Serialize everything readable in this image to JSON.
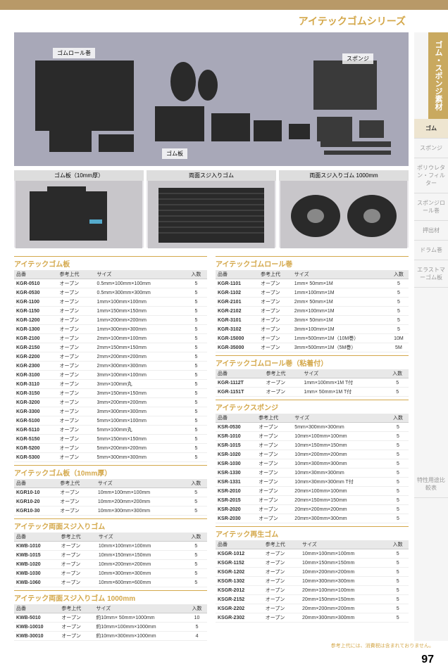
{
  "page": {
    "title": "アイテックゴムシリーズ",
    "number": "97",
    "footer": "参考上代には、消費税は含まれておりません。"
  },
  "sidebar": {
    "category": "ゴム・スポンジ素材",
    "items": [
      "ゴム",
      "スポンジ",
      "ポリウレタン・フィルター",
      "スポンジロール巻",
      "押出材",
      "ドラム巻",
      "エラストマーゴム板",
      "特性用途比較表"
    ]
  },
  "images": {
    "main_labels": [
      "ゴムロール巻",
      "ゴム板",
      "スポンジ"
    ],
    "row_labels": [
      "ゴム板（10mm厚）",
      "両面スジ入りゴム",
      "両面スジ入りゴム 1000mm"
    ]
  },
  "headers": {
    "code": "品番",
    "ref": "参考上代",
    "size": "サイズ",
    "qty": "入数"
  },
  "tables": {
    "t1": {
      "title": "アイテックゴム板",
      "rows": [
        [
          "KGR-0510",
          "オープン",
          "0.5mm×100mm×100mm",
          "5"
        ],
        [
          "KGR-0530",
          "オープン",
          "0.5mm×300mm×300mm",
          "5"
        ],
        [
          "KGR-1100",
          "オープン",
          "1mm×100mm×100mm",
          "5"
        ],
        [
          "KGR-1150",
          "オープン",
          "1mm×150mm×150mm",
          "5"
        ],
        [
          "KGR-1200",
          "オープン",
          "1mm×200mm×200mm",
          "5"
        ],
        [
          "KGR-1300",
          "オープン",
          "1mm×300mm×300mm",
          "5"
        ],
        [
          "KGR-2100",
          "オープン",
          "2mm×100mm×100mm",
          "5"
        ],
        [
          "KGR-2150",
          "オープン",
          "2mm×150mm×150mm",
          "5"
        ],
        [
          "KGR-2200",
          "オープン",
          "2mm×200mm×200mm",
          "5"
        ],
        [
          "KGR-2300",
          "オープン",
          "2mm×300mm×300mm",
          "5"
        ],
        [
          "KGR-3100",
          "オープン",
          "3mm×100mm×100mm",
          "5"
        ],
        [
          "KGR-3110",
          "オープン",
          "3mm×100mm丸",
          "5"
        ],
        [
          "KGR-3150",
          "オープン",
          "3mm×150mm×150mm",
          "5"
        ],
        [
          "KGR-3200",
          "オープン",
          "3mm×200mm×200mm",
          "5"
        ],
        [
          "KGR-3300",
          "オープン",
          "3mm×300mm×300mm",
          "5"
        ],
        [
          "KGR-5100",
          "オープン",
          "5mm×100mm×100mm",
          "5"
        ],
        [
          "KGR-5110",
          "オープン",
          "5mm×100mm丸",
          "5"
        ],
        [
          "KGR-5150",
          "オープン",
          "5mm×150mm×150mm",
          "5"
        ],
        [
          "KGR-5200",
          "オープン",
          "5mm×200mm×200mm",
          "5"
        ],
        [
          "KGR-5300",
          "オープン",
          "5mm×300mm×300mm",
          "5"
        ]
      ]
    },
    "t2": {
      "title": "アイテックゴム板（10mm厚）",
      "rows": [
        [
          "KGR10-10",
          "オープン",
          "10mm×100mm×100mm",
          "5"
        ],
        [
          "KGR10-20",
          "オープン",
          "10mm×200mm×200mm",
          "5"
        ],
        [
          "KGR10-30",
          "オープン",
          "10mm×300mm×300mm",
          "5"
        ]
      ]
    },
    "t3": {
      "title": "アイテック両面スジ入りゴム",
      "rows": [
        [
          "KWB-1010",
          "オープン",
          "10mm×100mm×100mm",
          "5"
        ],
        [
          "KWB-1015",
          "オープン",
          "10mm×150mm×150mm",
          "5"
        ],
        [
          "KWB-1020",
          "オープン",
          "10mm×200mm×200mm",
          "5"
        ],
        [
          "KWB-1030",
          "オープン",
          "10mm×300mm×300mm",
          "5"
        ],
        [
          "KWB-1060",
          "オープン",
          "10mm×600mm×600mm",
          "5"
        ]
      ]
    },
    "t4": {
      "title": "アイテック両面スジ入りゴム 1000mm",
      "rows": [
        [
          "KWB-5010",
          "オープン",
          "約10mm× 50mm×1000mm",
          "10"
        ],
        [
          "KWB-10010",
          "オープン",
          "約10mm×100mm×1000mm",
          "5"
        ],
        [
          "KWB-30010",
          "オープン",
          "約10mm×300mm×1000mm",
          "4"
        ]
      ]
    },
    "t5": {
      "title": "アイテックゴムロール巻",
      "rows": [
        [
          "KGR-1101",
          "オープン",
          "1mm× 50mm×1M",
          "5"
        ],
        [
          "KGR-1102",
          "オープン",
          "1mm×100mm×1M",
          "5"
        ],
        [
          "KGR-2101",
          "オープン",
          "2mm× 50mm×1M",
          "5"
        ],
        [
          "KGR-2102",
          "オープン",
          "2mm×100mm×1M",
          "5"
        ],
        [
          "KGR-3101",
          "オープン",
          "3mm× 50mm×1M",
          "5"
        ],
        [
          "KGR-3102",
          "オープン",
          "3mm×100mm×1M",
          "5"
        ],
        [
          "KGR-15000",
          "オープン",
          "1mm×500mm×1M（10M巻）",
          "10M"
        ],
        [
          "KGR-35000",
          "オープン",
          "3mm×500mm×1M（5M巻）",
          "5M"
        ]
      ]
    },
    "t6": {
      "title": "アイテックゴムロール巻（粘着付）",
      "rows": [
        [
          "KGR-1112T",
          "オープン",
          "1mm×100mm×1M T付",
          "5"
        ],
        [
          "KGR-1151T",
          "オープン",
          "1mm× 50mm×1M T付",
          "5"
        ]
      ]
    },
    "t7": {
      "title": "アイテックスポンジ",
      "rows": [
        [
          "KSR-0530",
          "オープン",
          "5mm×300mm×300mm",
          "5"
        ],
        [
          "KSR-1010",
          "オープン",
          "10mm×100mm×100mm",
          "5"
        ],
        [
          "KSR-1015",
          "オープン",
          "10mm×150mm×150mm",
          "5"
        ],
        [
          "KSR-1020",
          "オープン",
          "10mm×200mm×200mm",
          "5"
        ],
        [
          "KSR-1030",
          "オープン",
          "10mm×300mm×300mm",
          "5"
        ],
        [
          "KSR-1330",
          "オープン",
          "10mm×30mm×300mm",
          "5"
        ],
        [
          "KSR-1331",
          "オープン",
          "10mm×30mm×300mm T付",
          "5"
        ],
        [
          "KSR-2010",
          "オープン",
          "20mm×100mm×100mm",
          "5"
        ],
        [
          "KSR-2015",
          "オープン",
          "20mm×150mm×150mm",
          "5"
        ],
        [
          "KSR-2020",
          "オープン",
          "20mm×200mm×200mm",
          "5"
        ],
        [
          "KSR-2030",
          "オープン",
          "20mm×300mm×300mm",
          "5"
        ]
      ]
    },
    "t8": {
      "title": "アイテック再生ゴム",
      "rows": [
        [
          "KSGR-1012",
          "オープン",
          "10mm×100mm×100mm",
          "5"
        ],
        [
          "KSGR-1152",
          "オープン",
          "10mm×150mm×150mm",
          "5"
        ],
        [
          "KSGR-1202",
          "オープン",
          "10mm×200mm×200mm",
          "5"
        ],
        [
          "KSGR-1302",
          "オープン",
          "10mm×300mm×300mm",
          "5"
        ],
        [
          "KSGR-2012",
          "オープン",
          "20mm×100mm×100mm",
          "5"
        ],
        [
          "KSGR-2152",
          "オープン",
          "20mm×150mm×150mm",
          "5"
        ],
        [
          "KSGR-2202",
          "オープン",
          "20mm×200mm×200mm",
          "5"
        ],
        [
          "KSGR-2302",
          "オープン",
          "20mm×300mm×300mm",
          "5"
        ]
      ]
    }
  }
}
